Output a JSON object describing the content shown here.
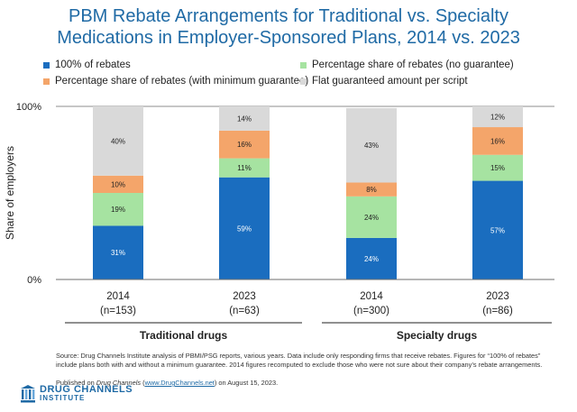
{
  "title_line1": "PBM Rebate Arrangements for Traditional vs. Specialty",
  "title_line2": "Medications in Employer-Sponsored Plans, 2014 vs. 2023",
  "chart_data": {
    "type": "bar",
    "stacked": true,
    "ylabel": "Share of employers",
    "ytick_labels": [
      "0%",
      "100%"
    ],
    "ylim": [
      0,
      100
    ],
    "legend_position": "top",
    "categories": [
      {
        "year": "2014",
        "n": "(n=153)"
      },
      {
        "year": "2023",
        "n": "(n=63)"
      },
      {
        "year": "2014",
        "n": "(n=300)"
      },
      {
        "year": "2023",
        "n": "(n=86)"
      }
    ],
    "groups": [
      {
        "label": "Traditional drugs",
        "categories": [
          0,
          1
        ]
      },
      {
        "label": "Specialty drugs",
        "categories": [
          2,
          3
        ]
      }
    ],
    "series": [
      {
        "name": "100% of rebates",
        "color": "#1a6dbf",
        "values": [
          31,
          59,
          24,
          57
        ],
        "value_labels": [
          "31%",
          "59%",
          "24%",
          "57%"
        ]
      },
      {
        "name": "Percentage share of rebates (no guarantee)",
        "color": "#a6e3a1",
        "values": [
          19,
          11,
          24,
          15
        ],
        "value_labels": [
          "19%",
          "11%",
          "24%",
          "15%"
        ]
      },
      {
        "name": "Percentage share of rebates (with minimum guarantee)",
        "color": "#f4a56a",
        "values": [
          10,
          16,
          8,
          16
        ],
        "value_labels": [
          "10%",
          "16%",
          "8%",
          "16%"
        ]
      },
      {
        "name": "Flat guaranteed amount per script",
        "color": "#d9d9d9",
        "values": [
          40,
          14,
          43,
          12
        ],
        "value_labels": [
          "40%",
          "14%",
          "43%",
          "12%"
        ]
      }
    ]
  },
  "footer": {
    "source": "Source: Drug Channels Institute analysis of PBMI/PSG reports, various years. Data include only responding firms that receive rebates. Figures for “100% of rebates” include plans both with and without a minimum guarantee. 2014 figures recomputed to exclude those who were not sure about their company’s rebate arrangements.",
    "published_prefix": "Published on ",
    "published_pub": "Drug Channels",
    "published_url": "www.DrugChannels.net",
    "published_suffix": " on August 15, 2023."
  },
  "logo": {
    "line1": "DRUG CHANNELS",
    "line2": "INSTITUTE",
    "color": "#1f6aa5"
  }
}
